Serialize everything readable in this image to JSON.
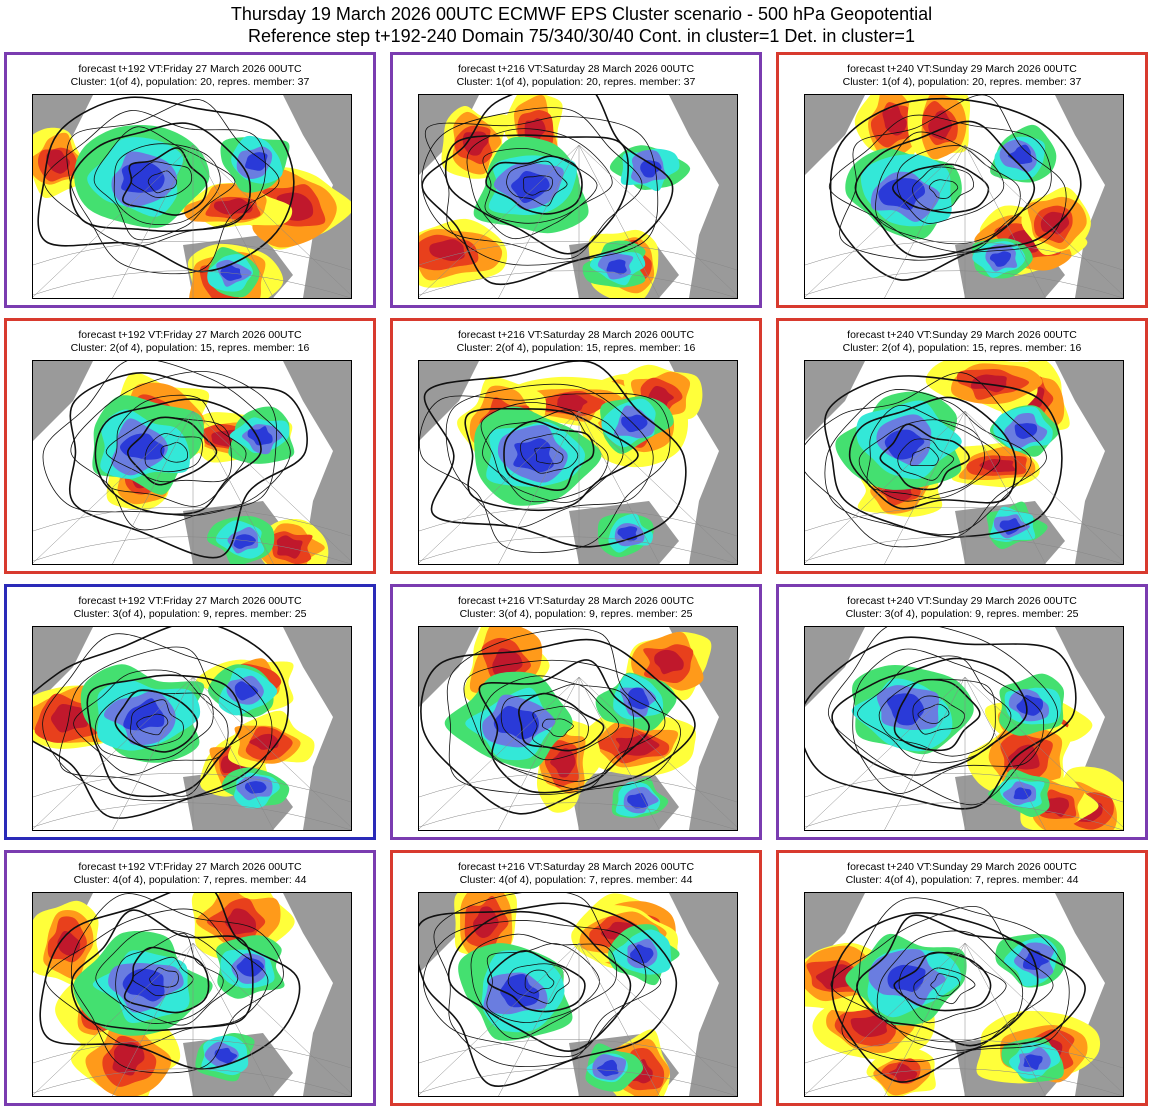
{
  "header": {
    "line1": "Thursday 19 March 2026 00UTC ECMWF EPS Cluster scenario - 500 hPa Geopotential",
    "line2": "Reference step t+192-240 Domain 75/340/30/40 Cont. in cluster=1 Det. in cluster=1"
  },
  "colors": {
    "border_purple": "#7a3cb0",
    "border_red": "#d83a2e",
    "border_blue": "#2a2ab8",
    "anomaly_positive": [
      "#ffff3a",
      "#ff9a1a",
      "#e8401c",
      "#c0182c"
    ],
    "anomaly_negative": [
      "#44e070",
      "#33e8d8",
      "#6a7de0",
      "#2a3ad8"
    ],
    "land_shading": "#9a9a9a"
  },
  "clusters": [
    {
      "panels": [
        {
          "border": "purple",
          "title": "forecast t+192 VT:Friday 27 March 2026 00UTC",
          "subtitle": "Cluster: 1(of 4), population: 20, repres. member: 37"
        },
        {
          "border": "purple",
          "title": "forecast t+216 VT:Saturday 28 March 2026 00UTC",
          "subtitle": "Cluster: 1(of 4), population: 20, repres. member: 37"
        },
        {
          "border": "red",
          "title": "forecast t+240 VT:Sunday 29 March 2026 00UTC",
          "subtitle": "Cluster: 1(of 4), population: 20, repres. member: 37"
        }
      ]
    },
    {
      "panels": [
        {
          "border": "red",
          "title": "forecast t+192 VT:Friday 27 March 2026 00UTC",
          "subtitle": "Cluster: 2(of 4), population: 15, repres. member: 16"
        },
        {
          "border": "red",
          "title": "forecast t+216 VT:Saturday 28 March 2026 00UTC",
          "subtitle": "Cluster: 2(of 4), population: 15, repres. member: 16"
        },
        {
          "border": "red",
          "title": "forecast t+240 VT:Sunday 29 March 2026 00UTC",
          "subtitle": "Cluster: 2(of 4), population: 15, repres. member: 16"
        }
      ]
    },
    {
      "panels": [
        {
          "border": "blue",
          "title": "forecast t+192 VT:Friday 27 March 2026 00UTC",
          "subtitle": "Cluster: 3(of 4), population: 9, repres. member: 25"
        },
        {
          "border": "purple",
          "title": "forecast t+216 VT:Saturday 28 March 2026 00UTC",
          "subtitle": "Cluster: 3(of 4), population: 9, repres. member: 25"
        },
        {
          "border": "purple",
          "title": "forecast t+240 VT:Sunday 29 March 2026 00UTC",
          "subtitle": "Cluster: 3(of 4), population: 9, repres. member: 25"
        }
      ]
    },
    {
      "panels": [
        {
          "border": "purple",
          "title": "forecast t+192 VT:Friday 27 March 2026 00UTC",
          "subtitle": "Cluster: 4(of 4), population: 7, repres. member: 44"
        },
        {
          "border": "red",
          "title": "forecast t+216 VT:Saturday 28 March 2026 00UTC",
          "subtitle": "Cluster: 4(of 4), population: 7, repres. member: 44"
        },
        {
          "border": "red",
          "title": "forecast t+240 VT:Sunday 29 March 2026 00UTC",
          "subtitle": "Cluster: 4(of 4), population: 7, repres. member: 44"
        }
      ]
    }
  ]
}
